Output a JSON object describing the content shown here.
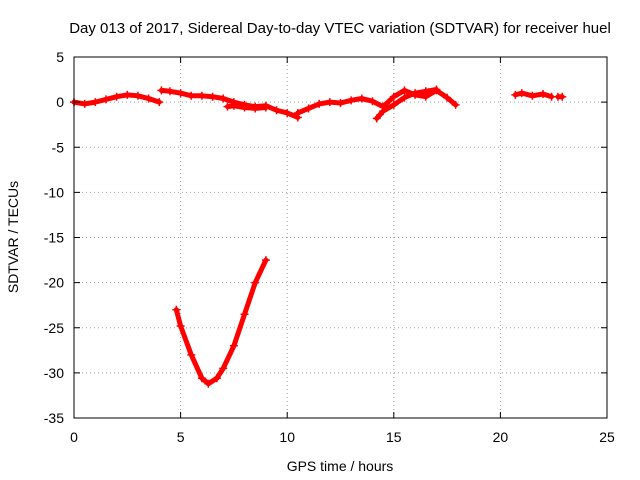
{
  "chart_data": {
    "type": "scatter",
    "title": "Day 013 of 2017, Sidereal Day-to-day VTEC variation (SDTVAR) for receiver huel",
    "xlabel": "GPS time / hours",
    "ylabel": "SDTVAR / TECUs",
    "xlim": [
      0,
      25
    ],
    "ylim": [
      -35,
      5
    ],
    "xticks": [
      0,
      5,
      10,
      15,
      20,
      25
    ],
    "yticks": [
      5,
      0,
      -5,
      -10,
      -15,
      -20,
      -25,
      -30,
      -35
    ],
    "grid": true,
    "marker_color": "#ff0000",
    "series": [
      {
        "name": "SDTVAR",
        "segments": [
          {
            "x": [
              0,
              0.5,
              1,
              1.5,
              2,
              2.5,
              3,
              3.5,
              4
            ],
            "y": [
              0,
              -0.2,
              0,
              0.3,
              0.6,
              0.8,
              0.7,
              0.4,
              0
            ]
          },
          {
            "x": [
              4.1,
              4.5,
              5,
              5.5,
              6,
              6.5,
              7,
              7.5,
              8,
              8.5,
              9,
              9.5,
              10,
              10.5
            ],
            "y": [
              1.3,
              1.2,
              1.0,
              0.7,
              0.7,
              0.6,
              0.4,
              0,
              -0.3,
              -0.5,
              -0.4,
              -0.9,
              -1.2,
              -1.7
            ]
          },
          {
            "x": [
              7.2,
              7.5,
              8,
              8.5,
              9
            ],
            "y": [
              -0.5,
              -0.4,
              -0.6,
              -0.7,
              -0.6
            ]
          },
          {
            "x": [
              10.5,
              11,
              11.5,
              12,
              12.5,
              13,
              13.5,
              14,
              14.5,
              15,
              15.5,
              16,
              16.5,
              17,
              17.5,
              17.9
            ],
            "y": [
              -1.2,
              -0.7,
              -0.2,
              0,
              -0.1,
              0.2,
              0.4,
              0.1,
              -0.5,
              0.6,
              1.3,
              0.8,
              0.6,
              1.3,
              0.5,
              -0.3
            ]
          },
          {
            "x": [
              14.2,
              14.5,
              15,
              15.5,
              16,
              16.5,
              17
            ],
            "y": [
              -1.8,
              -1.0,
              -0.3,
              0.5,
              1.0,
              1.2,
              1.4
            ]
          },
          {
            "x": [
              20.7,
              21,
              21.5,
              22,
              22.4
            ],
            "y": [
              0.8,
              1.0,
              0.7,
              0.9,
              0.6
            ]
          },
          {
            "x": [
              22.7,
              22.9
            ],
            "y": [
              0.6,
              0.6
            ]
          },
          {
            "x": [
              4.8,
              5,
              5.5,
              6,
              6.3,
              6.7,
              7,
              7.5,
              8,
              8.5,
              9
            ],
            "y": [
              -23,
              -24.8,
              -28,
              -30.6,
              -31.2,
              -30.6,
              -29.5,
              -27,
              -23.5,
              -20,
              -17.5
            ]
          }
        ]
      }
    ]
  }
}
